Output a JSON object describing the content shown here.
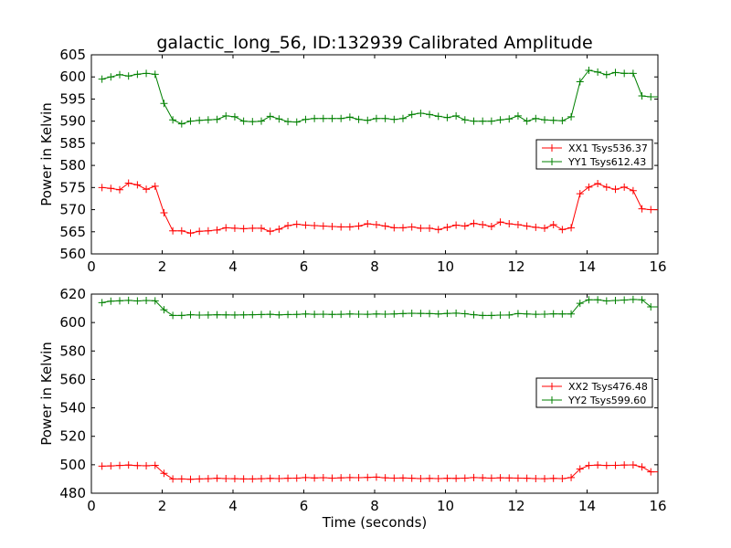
{
  "chart_data": [
    {
      "type": "line",
      "title": "galactic_long_56, ID:132939 Calibrated Amplitude",
      "xlabel": "",
      "ylabel": "Power in Kelvin",
      "xlim": [
        0,
        16
      ],
      "ylim": [
        560,
        605
      ],
      "xticks": [
        "0",
        "2",
        "4",
        "6",
        "8",
        "10",
        "12",
        "14",
        "16"
      ],
      "yticks": [
        "560",
        "565",
        "570",
        "575",
        "580",
        "585",
        "590",
        "595",
        "600",
        "605"
      ],
      "legend_position": "center-right",
      "grid": false,
      "x": [
        0.3,
        0.55,
        0.8,
        1.05,
        1.3,
        1.55,
        1.8,
        2.05,
        2.3,
        2.55,
        2.8,
        3.05,
        3.3,
        3.55,
        3.8,
        4.05,
        4.3,
        4.55,
        4.8,
        5.05,
        5.3,
        5.55,
        5.8,
        6.05,
        6.3,
        6.55,
        6.8,
        7.05,
        7.3,
        7.55,
        7.8,
        8.05,
        8.3,
        8.55,
        8.8,
        9.05,
        9.3,
        9.55,
        9.8,
        10.05,
        10.3,
        10.55,
        10.8,
        11.05,
        11.3,
        11.55,
        11.8,
        12.05,
        12.3,
        12.55,
        12.8,
        13.05,
        13.3,
        13.55,
        13.8,
        14.05,
        14.3,
        14.55,
        14.8,
        15.05,
        15.3,
        15.55,
        15.8,
        16.0
      ],
      "series": [
        {
          "name": "XX1 Tsys536.37",
          "color": "#ff0000",
          "values": [
            575.0,
            574.8,
            574.5,
            576.0,
            575.6,
            574.6,
            575.3,
            569.3,
            565.2,
            565.2,
            564.7,
            565.1,
            565.2,
            565.4,
            565.9,
            565.8,
            565.7,
            565.8,
            565.8,
            565.1,
            565.6,
            566.4,
            566.7,
            566.5,
            566.4,
            566.3,
            566.2,
            566.1,
            566.1,
            566.3,
            566.8,
            566.6,
            566.3,
            565.9,
            565.9,
            566.1,
            565.8,
            565.8,
            565.5,
            566.0,
            566.5,
            566.3,
            566.9,
            566.6,
            566.2,
            567.2,
            566.8,
            566.6,
            566.3,
            566.0,
            565.8,
            566.6,
            565.5,
            565.9,
            573.6,
            575.1,
            575.9,
            575.1,
            574.6,
            575.1,
            574.3,
            570.2,
            570.0,
            570.0
          ]
        },
        {
          "name": "YY1 Tsys612.43",
          "color": "#008000",
          "values": [
            599.5,
            600.0,
            600.5,
            600.2,
            600.6,
            600.8,
            600.6,
            594.0,
            590.3,
            589.4,
            590.0,
            590.2,
            590.3,
            590.4,
            591.2,
            591.0,
            590.0,
            589.9,
            590.0,
            591.1,
            590.5,
            589.9,
            589.8,
            590.4,
            590.6,
            590.6,
            590.6,
            590.6,
            590.9,
            590.4,
            590.2,
            590.6,
            590.6,
            590.4,
            590.6,
            591.5,
            591.8,
            591.5,
            591.1,
            590.8,
            591.2,
            590.3,
            590.0,
            590.0,
            590.0,
            590.3,
            590.5,
            591.2,
            590.0,
            590.6,
            590.3,
            590.2,
            590.1,
            591.0,
            598.9,
            601.5,
            601.1,
            600.5,
            601.0,
            600.8,
            600.8,
            595.7,
            595.5,
            595.5
          ]
        }
      ]
    },
    {
      "type": "line",
      "title": "",
      "xlabel": "Time (seconds)",
      "ylabel": "Power in Kelvin",
      "xlim": [
        0,
        16
      ],
      "ylim": [
        480,
        620
      ],
      "xticks": [
        "0",
        "2",
        "4",
        "6",
        "8",
        "10",
        "12",
        "14",
        "16"
      ],
      "yticks": [
        "480",
        "500",
        "520",
        "540",
        "560",
        "580",
        "600",
        "620"
      ],
      "legend_position": "center-right",
      "grid": false,
      "x": [
        0.3,
        0.55,
        0.8,
        1.05,
        1.3,
        1.55,
        1.8,
        2.05,
        2.3,
        2.55,
        2.8,
        3.05,
        3.3,
        3.55,
        3.8,
        4.05,
        4.3,
        4.55,
        4.8,
        5.05,
        5.3,
        5.55,
        5.8,
        6.05,
        6.3,
        6.55,
        6.8,
        7.05,
        7.3,
        7.55,
        7.8,
        8.05,
        8.3,
        8.55,
        8.8,
        9.05,
        9.3,
        9.55,
        9.8,
        10.05,
        10.3,
        10.55,
        10.8,
        11.05,
        11.3,
        11.55,
        11.8,
        12.05,
        12.3,
        12.55,
        12.8,
        13.05,
        13.3,
        13.55,
        13.8,
        14.05,
        14.3,
        14.55,
        14.8,
        15.05,
        15.3,
        15.55,
        15.8,
        16.0
      ],
      "series": [
        {
          "name": "XX2 Tsys476.48",
          "color": "#ff0000",
          "values": [
            499.0,
            499.2,
            499.5,
            499.8,
            499.4,
            499.3,
            499.6,
            494.0,
            490.0,
            490.0,
            489.8,
            490.0,
            490.2,
            490.5,
            490.3,
            490.2,
            490.0,
            490.0,
            490.2,
            490.4,
            490.3,
            490.5,
            490.6,
            491.0,
            490.7,
            490.9,
            490.6,
            490.8,
            491.0,
            490.9,
            491.1,
            491.3,
            490.8,
            490.6,
            490.7,
            490.5,
            490.3,
            490.4,
            490.3,
            490.5,
            490.4,
            490.6,
            491.0,
            490.8,
            490.6,
            490.8,
            490.7,
            490.6,
            490.5,
            490.3,
            490.2,
            490.4,
            490.3,
            491.0,
            497.0,
            499.5,
            499.8,
            499.5,
            499.6,
            499.8,
            499.9,
            498.5,
            495.0,
            495.0
          ]
        },
        {
          "name": "YY2 Tsys599.60",
          "color": "#008000",
          "values": [
            614.0,
            615.0,
            615.3,
            615.6,
            615.2,
            615.5,
            615.3,
            609.0,
            605.0,
            605.0,
            605.5,
            605.2,
            605.3,
            605.5,
            605.4,
            605.3,
            605.4,
            605.5,
            605.6,
            605.8,
            605.4,
            605.6,
            605.7,
            606.0,
            605.8,
            605.9,
            605.7,
            605.8,
            606.0,
            605.9,
            605.8,
            606.0,
            605.9,
            606.0,
            606.3,
            606.5,
            606.4,
            606.3,
            606.0,
            606.4,
            606.6,
            606.2,
            605.5,
            605.0,
            605.0,
            605.2,
            605.3,
            606.3,
            606.0,
            605.8,
            605.9,
            606.1,
            606.0,
            606.0,
            613.5,
            616.0,
            616.0,
            615.2,
            615.5,
            615.8,
            616.2,
            616.0,
            611.0,
            611.0
          ]
        }
      ]
    }
  ]
}
